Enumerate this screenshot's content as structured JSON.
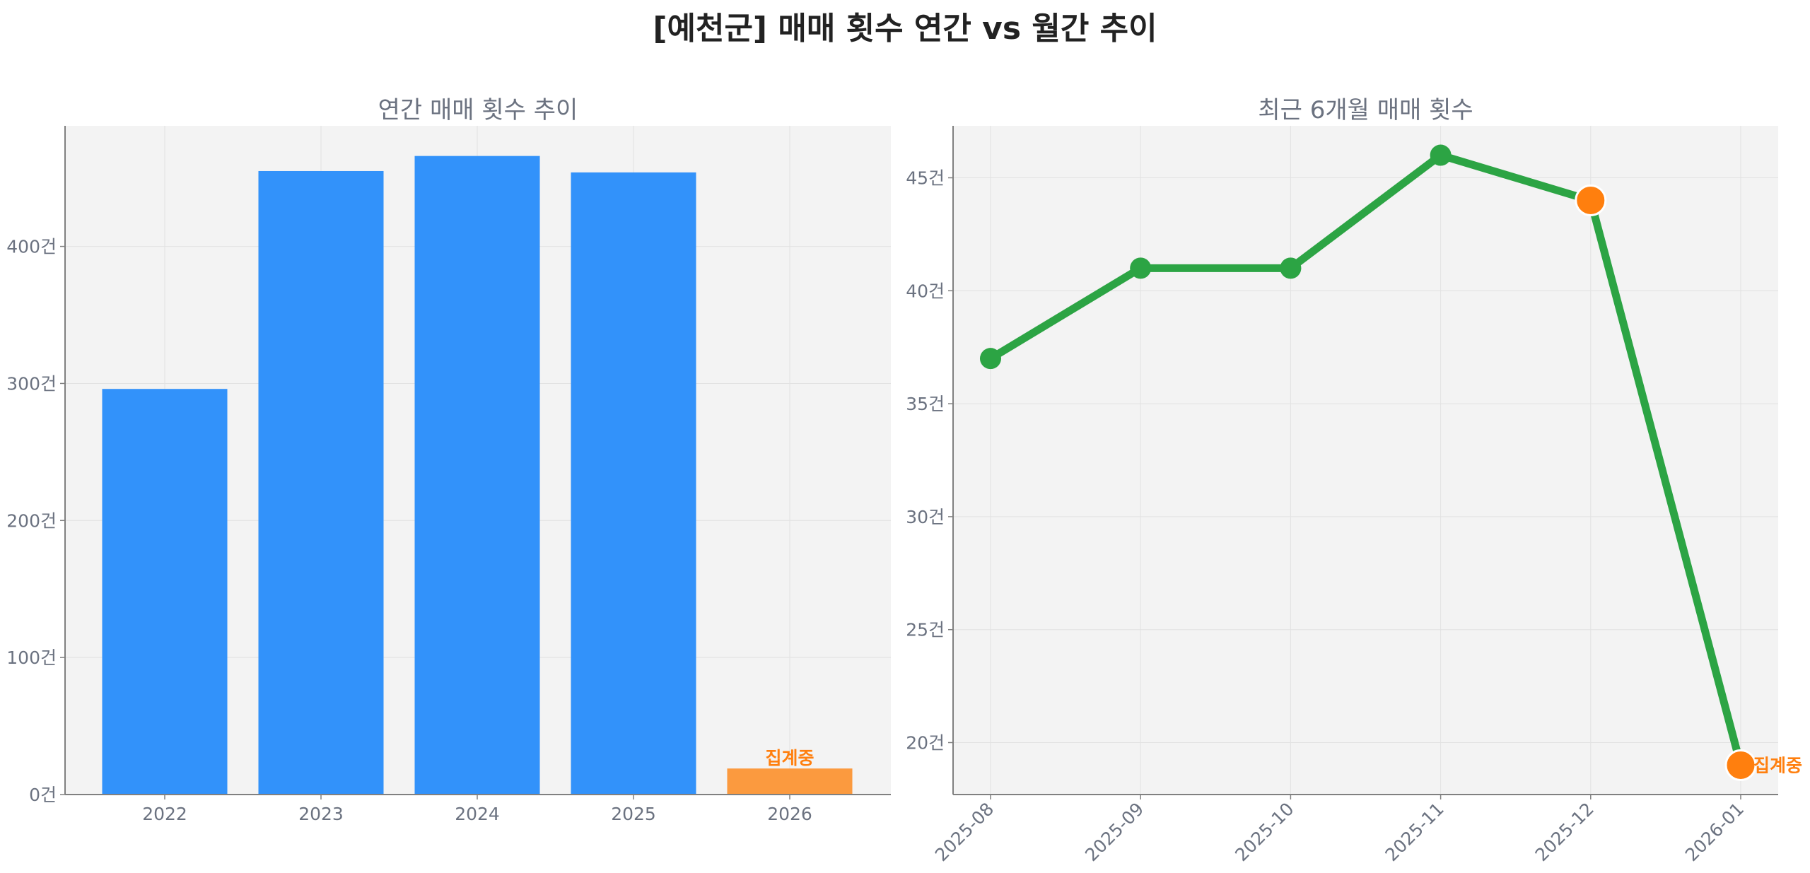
{
  "title": "[예천군] 매매 횟수 연간 vs 월간 추이",
  "colors": {
    "bar": "#3292fa",
    "bar_pending": "#fb9a3f",
    "line": "#2ca444",
    "highlight": "#ff7f0e",
    "plot_bg": "#f3f3f3",
    "grid": "#e2e2e2",
    "axis": "#808080"
  },
  "chart_data": [
    {
      "type": "bar",
      "title": "연간 매매 횟수 추이",
      "categories": [
        "2022",
        "2023",
        "2024",
        "2025",
        "2026"
      ],
      "values": [
        296,
        455,
        466,
        454,
        19
      ],
      "pending_index": 4,
      "pending_label": "집계중",
      "ylim": [
        0,
        488
      ],
      "yticks": [
        0,
        100,
        200,
        300,
        400
      ],
      "ytick_labels": [
        "0건",
        "100건",
        "200건",
        "300건",
        "400건"
      ],
      "grid": true
    },
    {
      "type": "line",
      "title": "최근 6개월 매매 횟수",
      "x": [
        "2025-08",
        "2025-09",
        "2025-10",
        "2025-11",
        "2025-12",
        "2026-01"
      ],
      "values": [
        37,
        41,
        41,
        46,
        44,
        19
      ],
      "highlight_indices": [
        4,
        5
      ],
      "pending_index": 5,
      "pending_label": "집계중",
      "ylim": [
        17.7,
        47.3
      ],
      "yticks": [
        20,
        25,
        30,
        35,
        40,
        45
      ],
      "ytick_labels": [
        "20건",
        "25건",
        "30건",
        "35건",
        "40건",
        "45건"
      ],
      "grid": true
    }
  ]
}
